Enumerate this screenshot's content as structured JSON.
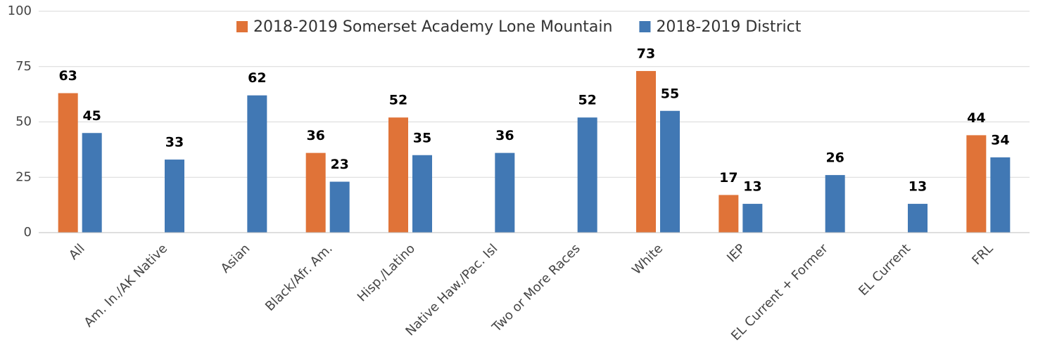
{
  "chart_data": {
    "type": "bar",
    "categories": [
      "All",
      "Am. In./AK Native",
      "Asian",
      "Black/Afr. Am.",
      "Hisp./Latino",
      "Native Haw./Pac. Isl",
      "Two or More Races",
      "White",
      "IEP",
      "EL Current + Former",
      "EL Current",
      "FRL"
    ],
    "series": [
      {
        "name": "2018-2019 Somerset Academy Lone Mountain",
        "color": "#e07338",
        "values": [
          63,
          null,
          null,
          36,
          52,
          null,
          null,
          73,
          17,
          null,
          null,
          44
        ]
      },
      {
        "name": "2018-2019 District",
        "color": "#4178b4",
        "values": [
          45,
          33,
          62,
          23,
          35,
          36,
          52,
          55,
          13,
          26,
          13,
          34
        ]
      }
    ],
    "ylim": [
      0,
      100
    ],
    "yticks": [
      0,
      25,
      50,
      75,
      100
    ],
    "grid": true,
    "legend": "top"
  }
}
